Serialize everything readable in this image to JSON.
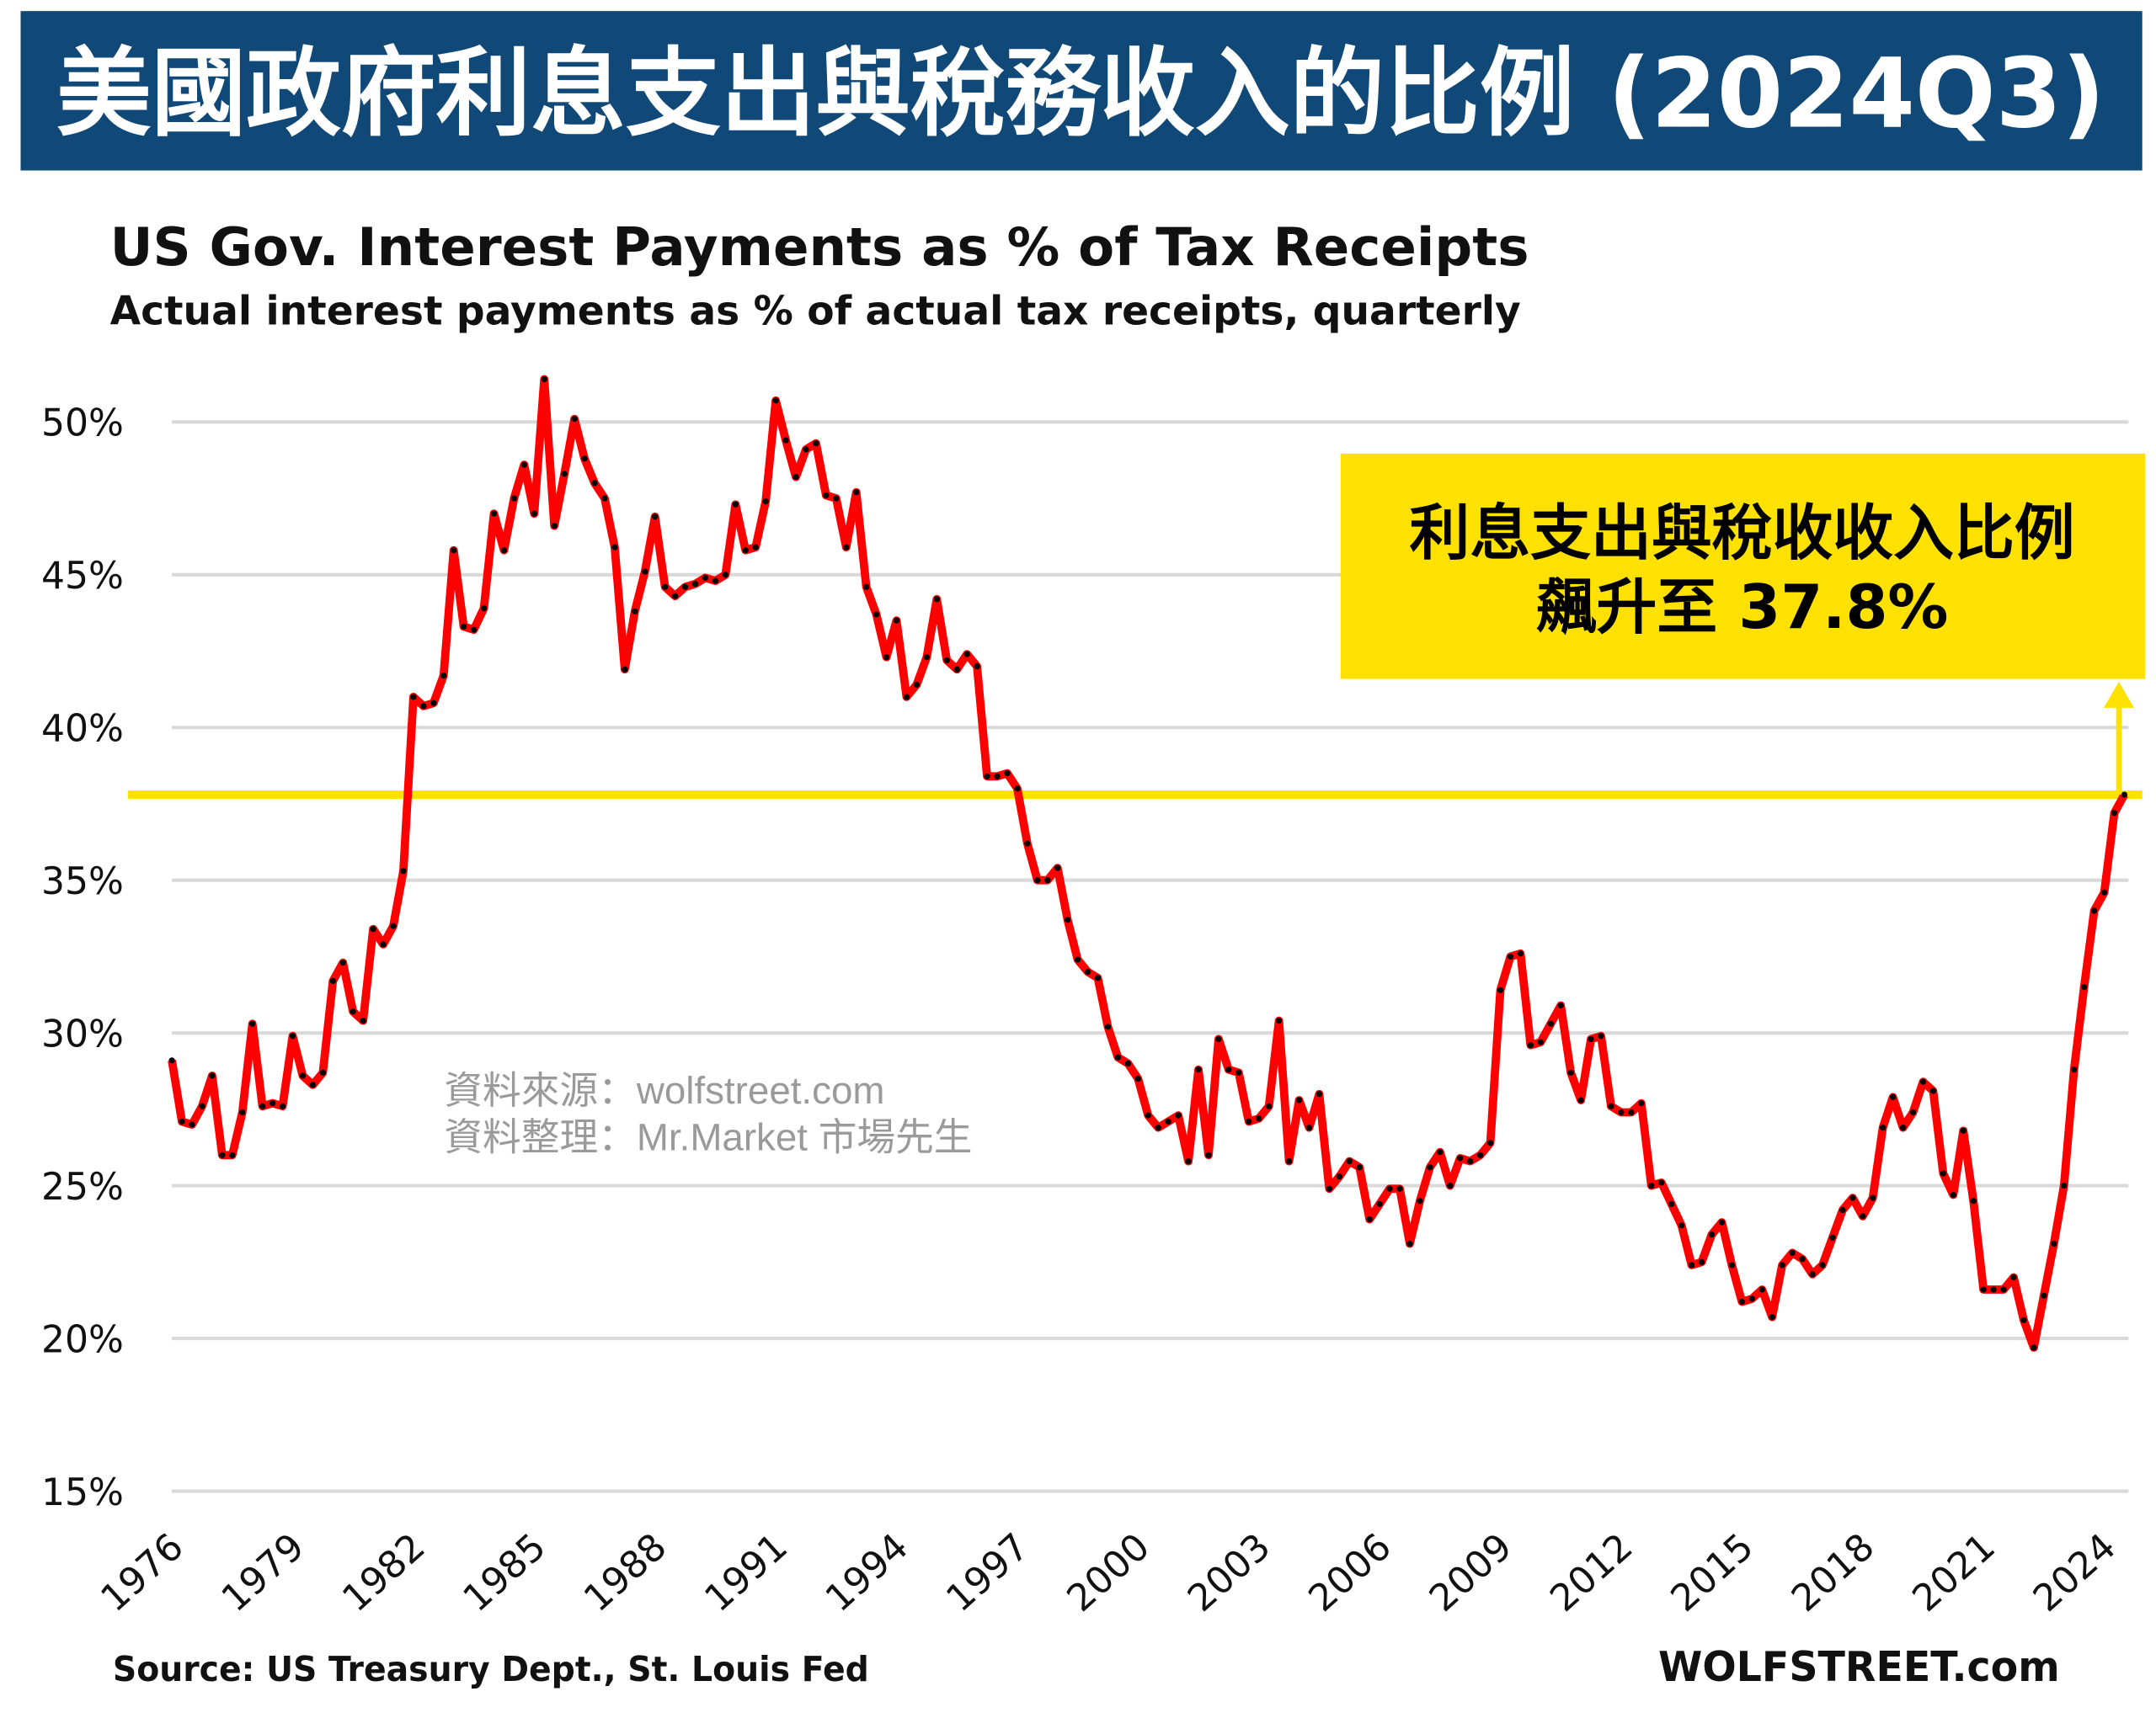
{
  "banner": {
    "title": "美國政府利息支出與稅務收入的比例 (2024Q3)",
    "color": "#104878"
  },
  "annotation": {
    "line1": "利息支出與稅收收入比例",
    "line2": "飆升至 37.8%",
    "color": "#FFE100"
  },
  "watermark": {
    "line1": "資料來源：wolfstreet.com",
    "line2": "資料整理：Mr.Market 市場先生"
  },
  "footer": {
    "source": "Source: US Treasury Dept., St. Louis Fed",
    "brand": "WOLFSTREET.com"
  },
  "chart_data": {
    "type": "line",
    "title": "US Gov. Interest Payments as % of Tax Receipts",
    "subtitle": "Actual interest payments as % of actual tax receipts, quarterly",
    "xlabel": "",
    "ylabel": "",
    "ylim": [
      15,
      50
    ],
    "yticks": [
      "15%",
      "20%",
      "25%",
      "30%",
      "35%",
      "40%",
      "45%",
      "50%"
    ],
    "ytick_values": [
      15,
      20,
      25,
      30,
      35,
      40,
      45,
      50
    ],
    "xticks": [
      "1976",
      "1979",
      "1982",
      "1985",
      "1988",
      "1991",
      "1994",
      "1997",
      "2000",
      "2003",
      "2006",
      "2009",
      "2012",
      "2015",
      "2018",
      "2021",
      "2024"
    ],
    "grid": true,
    "line_color": "#FF0000",
    "marker_color": "#000000",
    "x_start": "1976Q1",
    "x_end": "2024Q3",
    "highlight_level": 37.8,
    "highlight_color": "#FFE100",
    "series": [
      {
        "values": [
          29.1,
          27.1,
          27.0,
          27.6,
          28.6,
          26.0,
          26.0,
          27.4,
          30.3,
          27.6,
          27.7,
          27.6,
          29.9,
          28.6,
          28.3,
          28.7,
          31.7,
          32.3,
          30.7,
          30.4,
          33.4,
          32.9,
          33.5,
          35.3,
          41.0,
          40.7,
          40.8,
          41.7,
          45.8,
          43.3,
          43.2,
          43.9,
          47.0,
          45.8,
          47.5,
          48.6,
          47.0,
          51.4,
          46.6,
          48.3,
          50.1,
          48.8,
          48.0,
          47.5,
          45.9,
          41.9,
          43.8,
          45.1,
          46.9,
          44.6,
          44.3,
          44.6,
          44.7,
          44.9,
          44.8,
          45.0,
          47.3,
          45.8,
          45.9,
          47.4,
          50.7,
          49.4,
          48.2,
          49.1,
          49.3,
          47.6,
          47.5,
          45.9,
          47.7,
          44.6,
          43.7,
          42.3,
          43.5,
          41.0,
          41.4,
          42.3,
          44.2,
          42.2,
          41.9,
          42.4,
          42.0,
          38.4,
          38.4,
          38.5,
          38.0,
          36.2,
          35.0,
          35.0,
          35.4,
          33.7,
          32.4,
          32.0,
          31.8,
          30.2,
          29.2,
          29.0,
          28.5,
          27.3,
          26.9,
          27.1,
          27.3,
          25.8,
          28.8,
          26.0,
          29.8,
          28.8,
          28.7,
          27.1,
          27.2,
          27.6,
          30.4,
          25.8,
          27.8,
          26.9,
          28.0,
          24.9,
          25.3,
          25.8,
          25.6,
          23.9,
          24.4,
          24.9,
          24.9,
          23.1,
          24.5,
          25.6,
          26.1,
          25.0,
          25.9,
          25.8,
          26.0,
          26.4,
          31.4,
          32.5,
          32.6,
          29.6,
          29.7,
          30.3,
          30.9,
          28.7,
          27.8,
          29.8,
          29.9,
          27.6,
          27.4,
          27.4,
          27.7,
          25.0,
          25.1,
          24.4,
          23.7,
          22.4,
          22.5,
          23.4,
          23.8,
          22.4,
          21.2,
          21.3,
          21.6,
          20.7,
          22.4,
          22.8,
          22.6,
          22.1,
          22.4,
          23.3,
          24.2,
          24.6,
          24.0,
          24.6,
          26.9,
          27.9,
          26.9,
          27.4,
          28.4,
          28.1,
          25.4,
          24.7,
          26.8,
          24.5,
          21.6,
          21.6,
          21.6,
          22.0,
          20.6,
          19.7,
          21.4,
          23.1,
          25.0,
          28.8,
          31.5,
          34.0,
          34.6,
          37.2,
          37.8
        ]
      }
    ]
  }
}
